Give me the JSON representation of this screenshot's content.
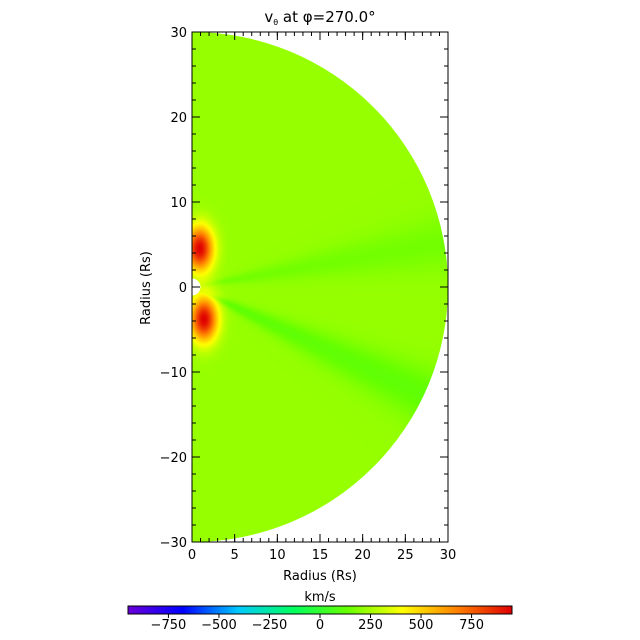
{
  "chart_data": {
    "type": "heatmap",
    "title": {
      "prefix": "v",
      "subscript": "θ",
      "suffix": " at φ=270.0°"
    },
    "xlabel": "Radius (Rs)",
    "ylabel": "Radius (Rs)",
    "xlim": [
      0,
      30
    ],
    "ylim": [
      -30,
      30
    ],
    "xticks": [
      0,
      5,
      10,
      15,
      20,
      25,
      30
    ],
    "yticks": [
      -30,
      -20,
      -10,
      0,
      10,
      20,
      30
    ],
    "domain": "half-disk, radius 30 Rs, x >= 0",
    "background_value": 220,
    "features": [
      {
        "name": "northern lobe",
        "x": 0.9,
        "y": 4.5,
        "peak": 950
      },
      {
        "name": "southern lobe",
        "x": 1.4,
        "y": -3.8,
        "peak": 950
      },
      {
        "name": "equatorial streamer",
        "angle_deg": -25,
        "value": 120
      },
      {
        "name": "equatorial streamer",
        "angle_deg": 10,
        "value": 160
      }
    ],
    "colorbar": {
      "label": "km/s",
      "min": -950,
      "max": 950,
      "ticks": [
        -750,
        -500,
        -250,
        0,
        250,
        500,
        750
      ],
      "colormap": [
        "#6a00d8",
        "#0000ff",
        "#00c8ff",
        "#00ff60",
        "#66ff00",
        "#ffff00",
        "#ff8000",
        "#e00000"
      ]
    }
  }
}
